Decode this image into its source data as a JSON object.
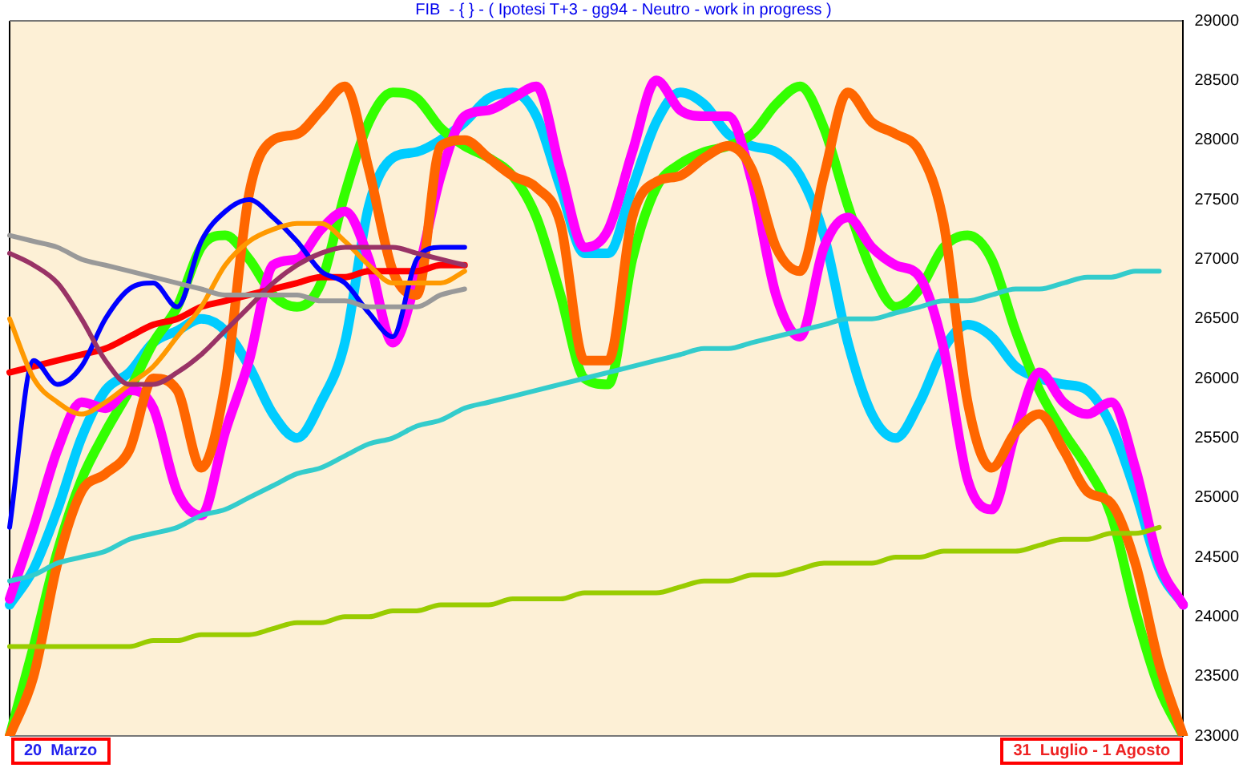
{
  "chart_data": {
    "type": "line",
    "title": "FIB  - { } - ( Ipotesi T+3 - gg94 - Neutro - work in progress )",
    "categories": [
      null,
      null,
      null,
      null,
      null,
      null,
      null,
      null,
      null,
      null,
      null,
      null,
      null,
      null,
      null,
      null,
      null,
      null,
      null,
      null,
      null,
      null,
      null,
      null,
      null,
      null,
      null,
      null,
      null,
      null,
      null,
      null,
      null,
      null,
      null,
      null,
      null,
      null,
      null,
      null,
      null,
      null,
      null,
      null,
      null,
      null,
      null,
      null,
      null,
      null
    ],
    "series": [
      {
        "color": "#99cc00",
        "values": [
          23750,
          23750,
          23750,
          23750,
          23750,
          23750,
          23800,
          23800,
          23850,
          23850,
          23850,
          23900,
          23950,
          23950,
          24000,
          24000,
          24050,
          24050,
          24100,
          24100,
          24100,
          24150,
          24150,
          24150,
          24200,
          24200,
          24200,
          24200,
          24250,
          24300,
          24300,
          24350,
          24350,
          24400,
          24450,
          24450,
          24450,
          24500,
          24500,
          24550,
          24550,
          24550,
          24550,
          24600,
          24650,
          24650,
          24700,
          24700,
          24750,
          null
        ]
      },
      {
        "color": "#33cccc",
        "values": [
          24300,
          24350,
          24450,
          24500,
          24550,
          24650,
          24700,
          24750,
          24850,
          24900,
          25000,
          25100,
          25200,
          25250,
          25350,
          25450,
          25500,
          25600,
          25650,
          25750,
          25800,
          25850,
          25900,
          25950,
          26000,
          26050,
          26100,
          26150,
          26200,
          26250,
          26250,
          26300,
          26350,
          26400,
          26450,
          26500,
          26500,
          26550,
          26600,
          26650,
          26650,
          26700,
          26750,
          26750,
          26800,
          26850,
          26850,
          26900,
          26900,
          null
        ]
      },
      {
        "color": "#999999",
        "values": [
          27200,
          27150,
          27100,
          27000,
          26950,
          26900,
          26850,
          26800,
          26750,
          26700,
          26700,
          26700,
          26700,
          26650,
          26650,
          26600,
          26600,
          26600,
          26700,
          26750,
          null,
          null,
          null,
          null,
          null,
          null,
          null,
          null,
          null,
          null,
          null,
          null,
          null,
          null,
          null,
          null,
          null,
          null,
          null,
          null,
          null,
          null,
          null,
          null,
          null,
          null,
          null,
          null,
          null,
          null
        ]
      },
      {
        "color": "#993366",
        "values": [
          27050,
          26950,
          26800,
          26500,
          26150,
          25950,
          25950,
          26050,
          26200,
          26400,
          26600,
          26800,
          26950,
          27050,
          27100,
          27100,
          27100,
          27050,
          27000,
          26950,
          null,
          null,
          null,
          null,
          null,
          null,
          null,
          null,
          null,
          null,
          null,
          null,
          null,
          null,
          null,
          null,
          null,
          null,
          null,
          null,
          null,
          null,
          null,
          null,
          null,
          null,
          null,
          null,
          null,
          null
        ]
      },
      {
        "color": "#ff9900",
        "values": [
          26500,
          26000,
          25800,
          25700,
          25800,
          25950,
          26100,
          26350,
          26600,
          26950,
          27150,
          27250,
          27300,
          27300,
          27150,
          26950,
          26800,
          26800,
          26800,
          26900,
          null,
          null,
          null,
          null,
          null,
          null,
          null,
          null,
          null,
          null,
          null,
          null,
          null,
          null,
          null,
          null,
          null,
          null,
          null,
          null,
          null,
          null,
          null,
          null,
          null,
          null,
          null,
          null,
          null,
          null
        ]
      },
      {
        "color": "#0000ff",
        "values": [
          24750,
          26150,
          25950,
          26100,
          26500,
          26750,
          26800,
          26600,
          27150,
          27400,
          27500,
          27350,
          27150,
          26900,
          26800,
          26550,
          26350,
          27000,
          27100,
          27100,
          null,
          null,
          null,
          null,
          null,
          null,
          null,
          null,
          null,
          null,
          null,
          null,
          null,
          null,
          null,
          null,
          null,
          null,
          null,
          null,
          null,
          null,
          null,
          null,
          null,
          null,
          null,
          null,
          null,
          null
        ]
      },
      {
        "color": "#ff0000",
        "values": [
          26050,
          26100,
          26150,
          26200,
          26250,
          26350,
          26450,
          26500,
          26600,
          26650,
          26700,
          26750,
          26800,
          26850,
          26850,
          26900,
          26900,
          26900,
          26950,
          26950,
          null,
          null,
          null,
          null,
          null,
          null,
          null,
          null,
          null,
          null,
          null,
          null,
          null,
          null,
          null,
          null,
          null,
          null,
          null,
          null,
          null,
          null,
          null,
          null,
          null,
          null,
          null,
          null,
          null,
          null
        ]
      },
      {
        "color": "#ff6600",
        "values": [
          23000,
          23500,
          24450,
          25050,
          25200,
          25400,
          26000,
          25900,
          25250,
          25950,
          27550,
          28000,
          28050,
          28250,
          28450,
          27750,
          26900,
          26700,
          27950,
          28000,
          27850,
          27700,
          27600,
          27300,
          26150,
          26150,
          27350,
          27650,
          27700,
          27850,
          27950,
          27750,
          27100,
          26900,
          27700,
          28400,
          28150,
          28050,
          27900,
          27300,
          25800,
          25250,
          25550,
          25700,
          25400,
          25050,
          24950,
          24450,
          23600,
          23000
        ]
      },
      {
        "color": "#ff00ff",
        "values": [
          24150,
          24750,
          25400,
          25800,
          25750,
          25900,
          25750,
          25050,
          24850,
          25550,
          26150,
          26950,
          27000,
          27250,
          27400,
          27000,
          26300,
          26850,
          27700,
          28200,
          28250,
          28350,
          28450,
          27750,
          27100,
          27250,
          27900,
          28500,
          28250,
          28200,
          28200,
          27650,
          26700,
          26350,
          27100,
          27350,
          27100,
          26950,
          26850,
          26250,
          25150,
          24900,
          25550,
          26050,
          25800,
          25700,
          25800,
          25250,
          24450,
          24100
        ]
      },
      {
        "color": "#33ff00",
        "values": [
          23000,
          23750,
          24550,
          25150,
          25550,
          25900,
          26300,
          26600,
          27100,
          27200,
          27000,
          26700,
          26600,
          26800,
          27550,
          28150,
          28400,
          28350,
          28100,
          27950,
          27850,
          27700,
          27350,
          26700,
          26000,
          25950,
          27000,
          27600,
          27800,
          27900,
          27950,
          28050,
          28300,
          28450,
          28100,
          27450,
          26900,
          26600,
          26750,
          27100,
          27200,
          27000,
          26400,
          25900,
          25550,
          25250,
          24850,
          24050,
          23400,
          23000
        ]
      },
      {
        "color": "#00ccff",
        "values": [
          24100,
          24400,
          24900,
          25500,
          25900,
          26050,
          26300,
          26400,
          26500,
          26400,
          26100,
          25700,
          25500,
          25800,
          26300,
          27450,
          27850,
          27900,
          28000,
          28150,
          28350,
          28400,
          28200,
          27600,
          27050,
          27050,
          27600,
          28150,
          28400,
          28300,
          28050,
          27950,
          27900,
          27700,
          27200,
          26300,
          25700,
          25500,
          25800,
          26250,
          26450,
          26350,
          26100,
          26000,
          25950,
          25900,
          25600,
          25050,
          24400,
          24100
        ]
      }
    ],
    "ylim": [
      23000,
      29000
    ],
    "yticks": [
      23000,
      23500,
      24000,
      24500,
      25000,
      25500,
      26000,
      26500,
      27000,
      27500,
      28000,
      28500,
      29000
    ],
    "grid": false,
    "legend": false,
    "marker": "none",
    "line_style": "solid",
    "tick_labels": "y",
    "annotations": [
      "20  Marzo",
      "31  Luglio - 1 Agosto"
    ]
  }
}
